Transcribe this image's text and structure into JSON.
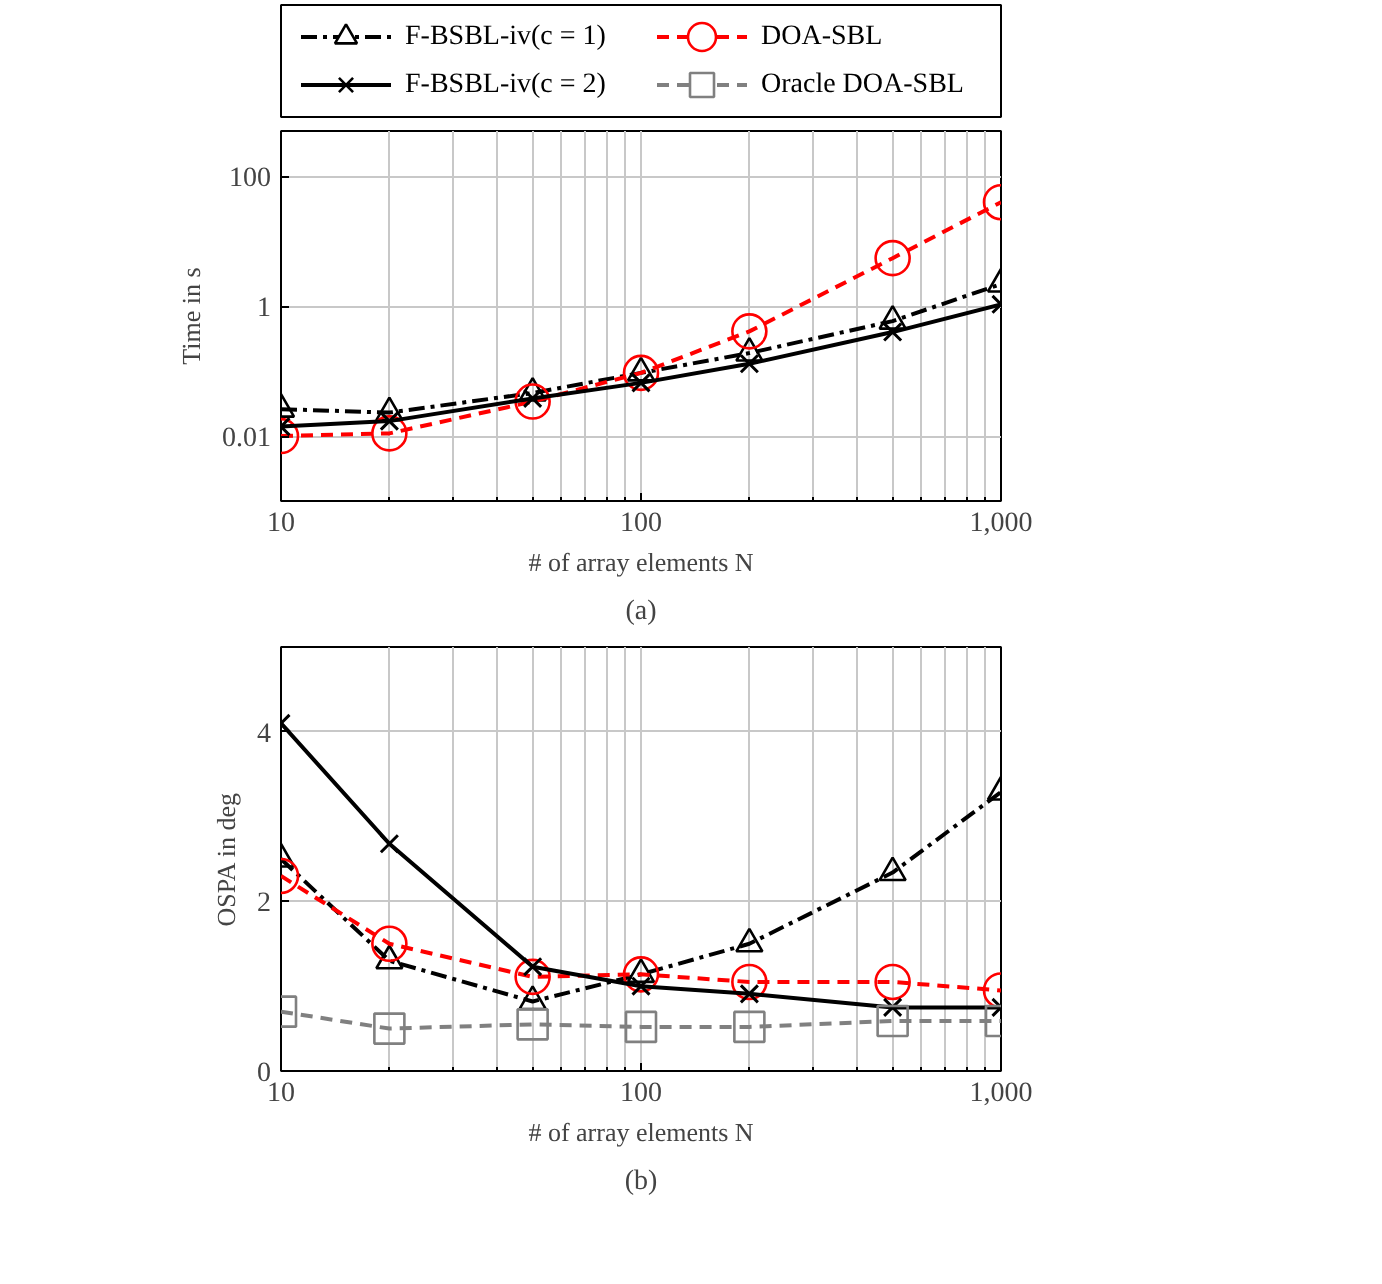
{
  "chart_data": [
    {
      "type": "line",
      "xlabel": "# of array elements N",
      "ylabel": "Time in s",
      "log": "xy",
      "grid": true,
      "legend": "top",
      "x": [
        10,
        20,
        50,
        100,
        200,
        500,
        1000
      ],
      "xlim": [
        10,
        1000
      ],
      "xticks": [
        10,
        100,
        {
          "value": 1000,
          "label": "1,000"
        }
      ],
      "ylim": [
        0.001,
        500
      ],
      "yticks": [
        0.01,
        1,
        100
      ],
      "annotations": [
        "(a)"
      ],
      "series": [
        {
          "name": "F-BSBL-iv(c = 1)",
          "color": "#000000",
          "marker": "triangle",
          "line_style": "dashdot",
          "values": [
            0.026,
            0.023,
            0.046,
            0.094,
            0.19,
            0.59,
            2.2
          ]
        },
        {
          "name": "DOA-SBL",
          "color": "#ff0000",
          "marker": "circle",
          "line_style": "dashed",
          "values": [
            0.01,
            0.011,
            0.034,
            0.094,
            0.41,
            5.5,
            40
          ]
        },
        {
          "name": "F-BSBL-iv(c = 2)",
          "color": "#000000",
          "marker": "cross",
          "line_style": "solid",
          "values": [
            0.014,
            0.017,
            0.038,
            0.066,
            0.13,
            0.4,
            1.07
          ]
        }
      ]
    },
    {
      "type": "line",
      "xlabel": "# of array elements N",
      "ylabel": "OSPA in deg",
      "log": "x",
      "grid": true,
      "legend": "top",
      "x": [
        10,
        20,
        50,
        100,
        200,
        500,
        1000
      ],
      "xlim": [
        10,
        1000
      ],
      "xticks": [
        10,
        100,
        {
          "value": 1000,
          "label": "1,000"
        }
      ],
      "ylim": [
        0,
        5
      ],
      "yticks": [
        0,
        2,
        4
      ],
      "annotations": [
        "(b)"
      ],
      "series": [
        {
          "name": "F-BSBL-iv(c = 1)",
          "color": "#000000",
          "marker": "triangle",
          "line_style": "dashdot",
          "values": [
            2.5,
            1.3,
            0.82,
            1.14,
            1.5,
            2.34,
            3.29
          ]
        },
        {
          "name": "DOA-SBL",
          "color": "#ff0000",
          "marker": "circle",
          "line_style": "dashed",
          "values": [
            2.3,
            1.5,
            1.11,
            1.14,
            1.05,
            1.05,
            0.95
          ]
        },
        {
          "name": "F-BSBL-iv(c = 2)",
          "color": "#000000",
          "marker": "cross",
          "line_style": "solid",
          "values": [
            4.1,
            2.68,
            1.23,
            1.0,
            0.91,
            0.75,
            0.75
          ]
        },
        {
          "name": "Oracle DOA-SBL",
          "color": "#808080",
          "marker": "square",
          "line_style": "dashed",
          "values": [
            0.7,
            0.5,
            0.55,
            0.52,
            0.52,
            0.59,
            0.59
          ]
        }
      ]
    }
  ]
}
